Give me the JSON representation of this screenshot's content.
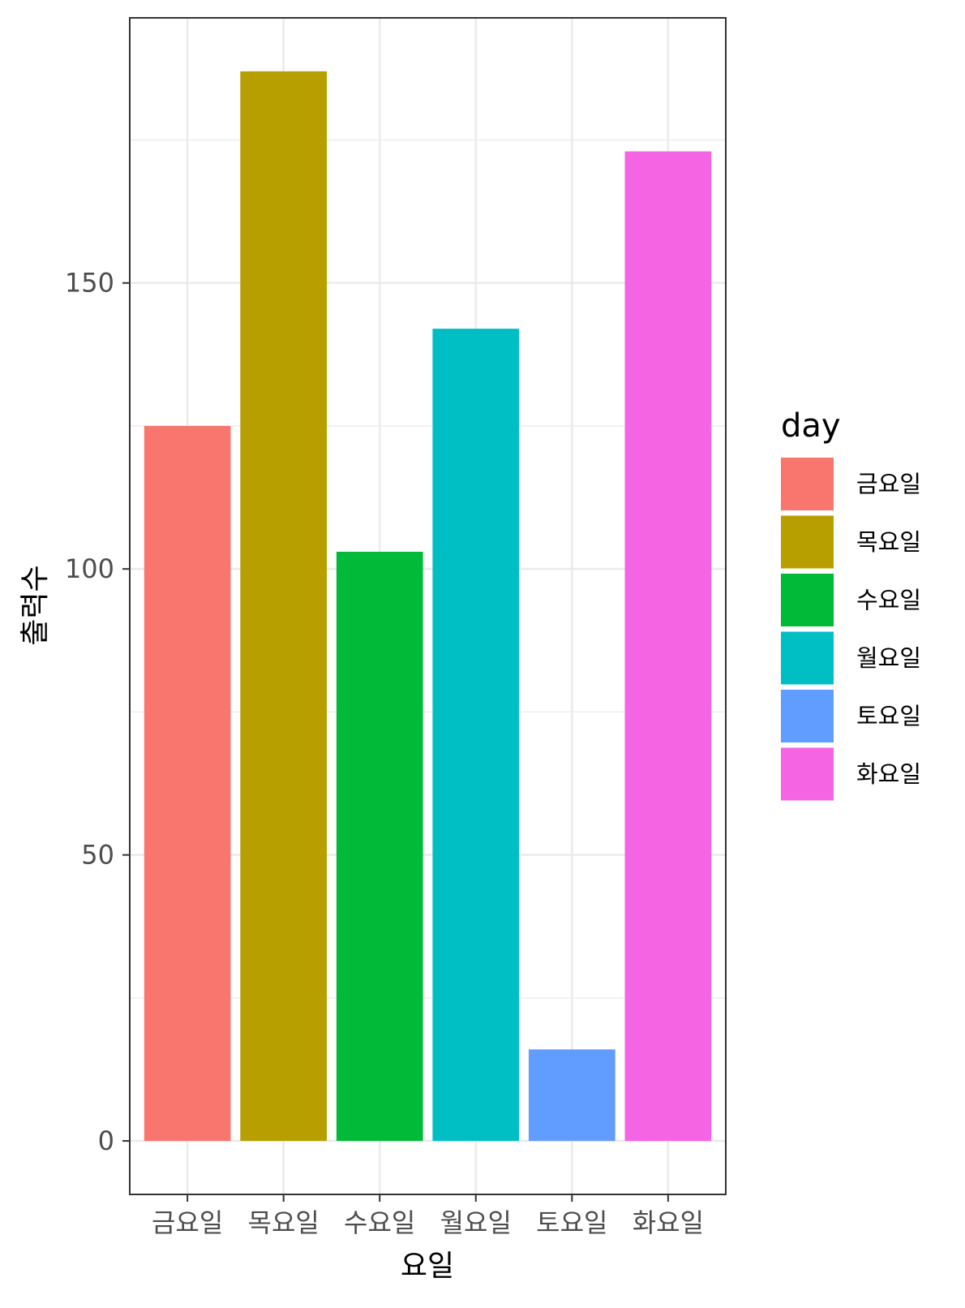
{
  "chart_data": {
    "type": "bar",
    "categories": [
      "금요일",
      "목요일",
      "수요일",
      "월요일",
      "토요일",
      "화요일"
    ],
    "values": [
      125,
      187,
      103,
      142,
      16,
      173
    ],
    "colors": [
      "#F8766D",
      "#B79F00",
      "#00BA38",
      "#00BFC4",
      "#619CFF",
      "#F564E3"
    ],
    "xlabel": "요일",
    "ylabel": "출력수",
    "ylim": [
      -9.35,
      196.35
    ],
    "yticks": [
      0,
      50,
      100,
      150
    ],
    "grid": true,
    "legend": {
      "title": "day",
      "position": "right",
      "entries": [
        "금요일",
        "목요일",
        "수요일",
        "월요일",
        "토요일",
        "화요일"
      ]
    }
  }
}
